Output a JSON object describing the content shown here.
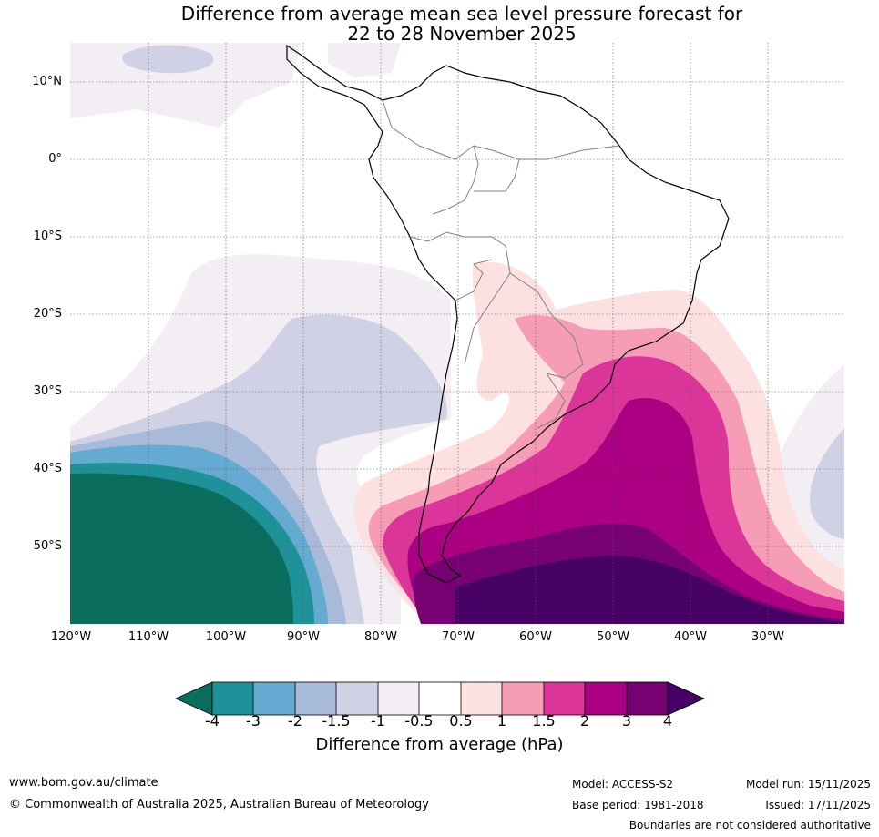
{
  "title": {
    "line1": "Difference from average mean sea level pressure forecast for",
    "line2": "22 to 28 November 2025"
  },
  "map": {
    "lat_labels": [
      "10°N",
      "0°",
      "10°S",
      "20°S",
      "30°S",
      "40°S",
      "50°S"
    ],
    "lon_labels": [
      "120°W",
      "110°W",
      "100°W",
      "90°W",
      "80°W",
      "70°W",
      "60°W",
      "50°W",
      "40°W",
      "30°W"
    ]
  },
  "colorbar": {
    "title": "Difference from average (hPa)",
    "tick_labels": [
      "-4",
      "-3",
      "-2",
      "-1.5",
      "-1",
      "-0.5",
      "0.5",
      "1",
      "1.5",
      "2",
      "3",
      "4"
    ],
    "colors": [
      "#0b6d5e",
      "#1e9199",
      "#65abd1",
      "#a8bad9",
      "#d0d1e5",
      "#f2eef4",
      "#ffffff",
      "#fde0e0",
      "#f79cb6",
      "#dc3599",
      "#ab0082",
      "#770072",
      "#470064"
    ]
  },
  "footer": {
    "website": "www.bom.gov.au/climate",
    "copyright": "© Commonwealth of Australia 2025, Australian Bureau of Meteorology",
    "model": "Model: ACCESS-S2",
    "base_period": "Base period: 1981-2018",
    "model_run": "Model run: 15/11/2025",
    "issued": "Issued: 17/11/2025",
    "disclaimer": "Boundaries are not considered authoritative"
  }
}
